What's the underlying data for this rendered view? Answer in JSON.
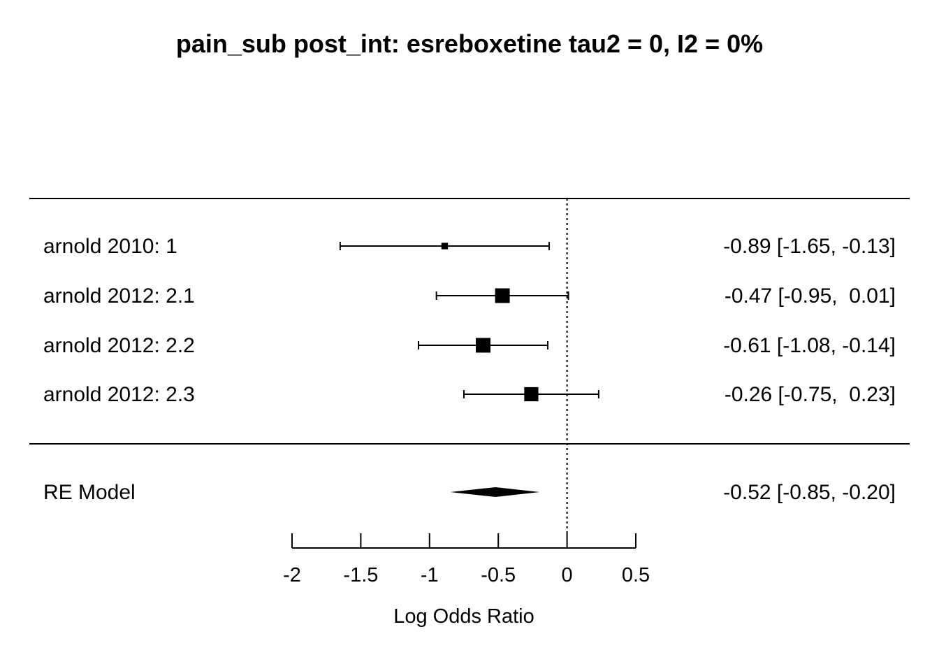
{
  "chart_data": {
    "type": "forest",
    "title": "pain_sub post_int: esreboxetine tau2 = 0, I2 = 0%",
    "xlabel": "Log Odds Ratio",
    "xlim": [
      -2,
      0.5
    ],
    "xticks": [
      -2,
      -1.5,
      -1,
      -0.5,
      0,
      0.5
    ],
    "xtick_labels": [
      "-2",
      "-1.5",
      "-1",
      "-0.5",
      "0",
      "0.5"
    ],
    "reference_line": 0,
    "studies": [
      {
        "label": "arnold 2010: 1",
        "estimate": -0.89,
        "ci": [
          -1.65,
          -0.13
        ],
        "weight": 1.0,
        "text": "-0.89 [-1.65, -0.13]"
      },
      {
        "label": "arnold 2012: 2.1",
        "estimate": -0.47,
        "ci": [
          -0.95,
          0.01
        ],
        "weight": 20.0,
        "text": "-0.47 [-0.95,  0.01]"
      },
      {
        "label": "arnold 2012: 2.2",
        "estimate": -0.61,
        "ci": [
          -1.08,
          -0.14
        ],
        "weight": 20.0,
        "text": "-0.61 [-1.08, -0.14]"
      },
      {
        "label": "arnold 2012: 2.3",
        "estimate": -0.26,
        "ci": [
          -0.75,
          0.23
        ],
        "weight": 18.0,
        "text": "-0.26 [-0.75,  0.23]"
      }
    ],
    "summary": {
      "label": "RE Model",
      "estimate": -0.52,
      "ci": [
        -0.85,
        -0.2
      ],
      "text": "-0.52 [-0.85, -0.20]"
    }
  }
}
